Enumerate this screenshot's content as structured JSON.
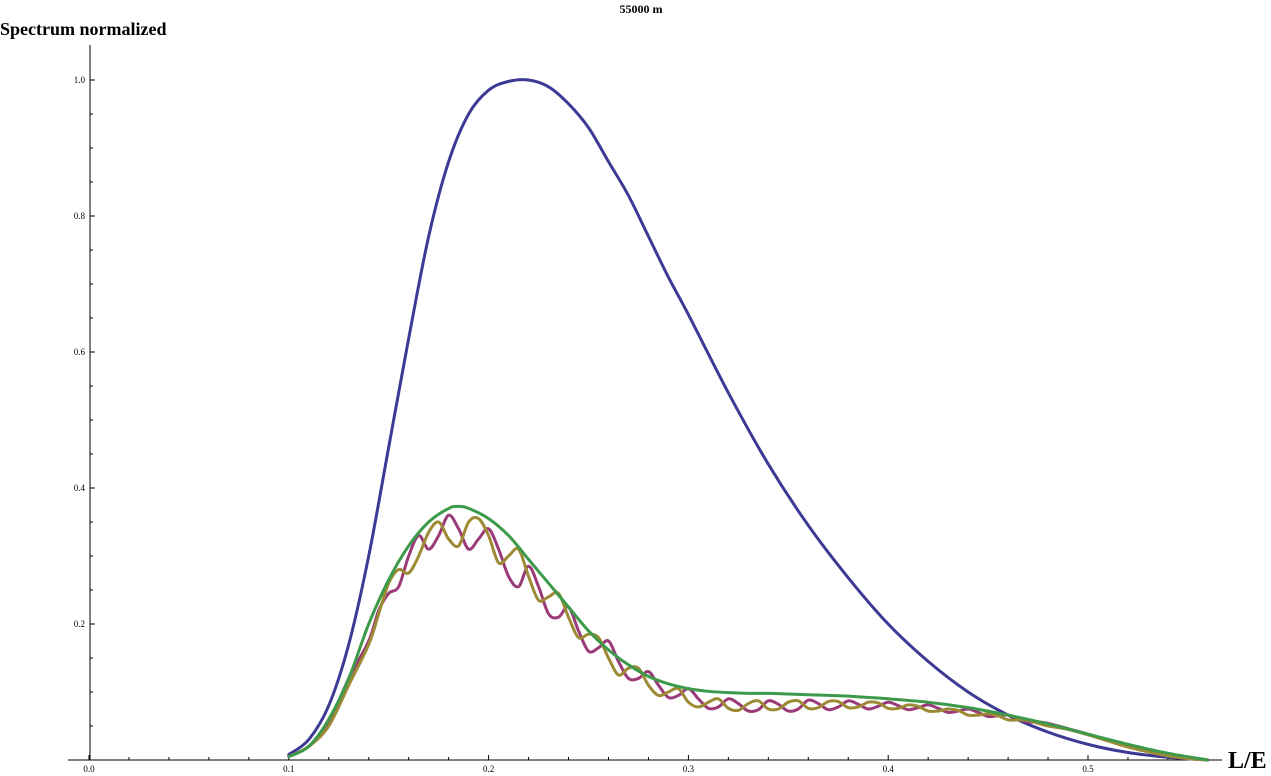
{
  "chart_data": {
    "type": "line",
    "title": "55000 m",
    "xlabel": "L/E",
    "ylabel": "Spectrum normalized",
    "xlim": [
      0.0,
      0.56
    ],
    "ylim": [
      0.0,
      1.0
    ],
    "grid": false,
    "legend": "none",
    "xticks": [
      {
        "value": 0.0,
        "label": "0.0"
      },
      {
        "value": 0.1,
        "label": "0.1"
      },
      {
        "value": 0.2,
        "label": "0.2"
      },
      {
        "value": 0.3,
        "label": "0.3"
      },
      {
        "value": 0.4,
        "label": "0.4"
      },
      {
        "value": 0.5,
        "label": "0.5"
      }
    ],
    "yticks": [
      {
        "value": 0.2,
        "label": "0.2"
      },
      {
        "value": 0.4,
        "label": "0.4"
      },
      {
        "value": 0.6,
        "label": "0.6"
      },
      {
        "value": 0.8,
        "label": "0.8"
      },
      {
        "value": 1.0,
        "label": "1.0"
      }
    ],
    "series": [
      {
        "color": "#3d3a95",
        "x": [
          0.1,
          0.11,
          0.12,
          0.13,
          0.14,
          0.15,
          0.16,
          0.17,
          0.18,
          0.19,
          0.2,
          0.21,
          0.22,
          0.23,
          0.24,
          0.25,
          0.26,
          0.27,
          0.28,
          0.29,
          0.3,
          0.32,
          0.34,
          0.36,
          0.38,
          0.4,
          0.42,
          0.44,
          0.46,
          0.48,
          0.5,
          0.52,
          0.54,
          0.56
        ],
        "y": [
          0.008,
          0.03,
          0.08,
          0.17,
          0.3,
          0.46,
          0.62,
          0.77,
          0.88,
          0.95,
          0.985,
          0.998,
          1.0,
          0.99,
          0.965,
          0.93,
          0.88,
          0.83,
          0.77,
          0.71,
          0.655,
          0.54,
          0.435,
          0.345,
          0.268,
          0.2,
          0.145,
          0.1,
          0.066,
          0.041,
          0.023,
          0.011,
          0.004,
          0.0
        ]
      },
      {
        "color": "#9b3a78",
        "x": [
          0.1,
          0.11,
          0.12,
          0.13,
          0.14,
          0.145,
          0.15,
          0.155,
          0.16,
          0.165,
          0.17,
          0.175,
          0.18,
          0.185,
          0.19,
          0.195,
          0.2,
          0.205,
          0.21,
          0.215,
          0.22,
          0.225,
          0.23,
          0.235,
          0.24,
          0.245,
          0.25,
          0.255,
          0.26,
          0.265,
          0.27,
          0.275,
          0.28,
          0.285,
          0.29,
          0.295,
          0.3,
          0.305,
          0.31,
          0.315,
          0.32,
          0.325,
          0.33,
          0.335,
          0.34,
          0.345,
          0.35,
          0.355,
          0.36,
          0.365,
          0.37,
          0.375,
          0.38,
          0.385,
          0.39,
          0.395,
          0.4,
          0.405,
          0.41,
          0.415,
          0.42,
          0.425,
          0.43,
          0.435,
          0.44,
          0.445,
          0.45,
          0.455,
          0.46,
          0.465,
          0.47,
          0.475,
          0.48,
          0.49,
          0.5,
          0.51,
          0.52,
          0.53,
          0.54,
          0.55,
          0.56
        ],
        "y": [
          0.005,
          0.02,
          0.055,
          0.12,
          0.175,
          0.22,
          0.245,
          0.255,
          0.3,
          0.33,
          0.31,
          0.33,
          0.36,
          0.34,
          0.31,
          0.325,
          0.34,
          0.31,
          0.27,
          0.255,
          0.285,
          0.255,
          0.215,
          0.21,
          0.225,
          0.19,
          0.16,
          0.165,
          0.175,
          0.145,
          0.12,
          0.12,
          0.13,
          0.11,
          0.092,
          0.095,
          0.105,
          0.09,
          0.076,
          0.078,
          0.09,
          0.083,
          0.072,
          0.074,
          0.087,
          0.082,
          0.072,
          0.075,
          0.088,
          0.083,
          0.074,
          0.078,
          0.087,
          0.082,
          0.075,
          0.079,
          0.085,
          0.08,
          0.074,
          0.077,
          0.081,
          0.076,
          0.07,
          0.072,
          0.075,
          0.07,
          0.064,
          0.065,
          0.066,
          0.061,
          0.056,
          0.056,
          0.054,
          0.046,
          0.038,
          0.029,
          0.02,
          0.013,
          0.007,
          0.003,
          0.0
        ]
      },
      {
        "color": "#9c8a35",
        "x": [
          0.1,
          0.11,
          0.12,
          0.13,
          0.14,
          0.145,
          0.15,
          0.155,
          0.16,
          0.165,
          0.17,
          0.175,
          0.18,
          0.185,
          0.19,
          0.195,
          0.2,
          0.205,
          0.21,
          0.215,
          0.22,
          0.225,
          0.23,
          0.235,
          0.24,
          0.245,
          0.25,
          0.255,
          0.26,
          0.265,
          0.27,
          0.275,
          0.28,
          0.285,
          0.29,
          0.295,
          0.3,
          0.305,
          0.31,
          0.315,
          0.32,
          0.325,
          0.33,
          0.335,
          0.34,
          0.345,
          0.35,
          0.355,
          0.36,
          0.365,
          0.37,
          0.375,
          0.38,
          0.385,
          0.39,
          0.395,
          0.4,
          0.405,
          0.41,
          0.415,
          0.42,
          0.425,
          0.43,
          0.435,
          0.44,
          0.445,
          0.45,
          0.455,
          0.46,
          0.465,
          0.47,
          0.475,
          0.48,
          0.49,
          0.5,
          0.51,
          0.52,
          0.53,
          0.54,
          0.55,
          0.56
        ],
        "y": [
          0.005,
          0.02,
          0.05,
          0.11,
          0.17,
          0.215,
          0.26,
          0.28,
          0.275,
          0.3,
          0.335,
          0.35,
          0.325,
          0.315,
          0.35,
          0.355,
          0.33,
          0.29,
          0.3,
          0.31,
          0.27,
          0.235,
          0.24,
          0.245,
          0.21,
          0.18,
          0.185,
          0.18,
          0.15,
          0.125,
          0.135,
          0.135,
          0.11,
          0.095,
          0.1,
          0.105,
          0.085,
          0.078,
          0.085,
          0.09,
          0.076,
          0.073,
          0.083,
          0.087,
          0.075,
          0.075,
          0.085,
          0.087,
          0.076,
          0.077,
          0.086,
          0.086,
          0.077,
          0.078,
          0.085,
          0.084,
          0.076,
          0.076,
          0.081,
          0.079,
          0.072,
          0.072,
          0.075,
          0.073,
          0.066,
          0.066,
          0.068,
          0.065,
          0.059,
          0.059,
          0.058,
          0.054,
          0.05,
          0.045,
          0.037,
          0.028,
          0.019,
          0.012,
          0.006,
          0.002,
          0.0
        ]
      },
      {
        "color": "#3d9a4a",
        "x": [
          0.1,
          0.11,
          0.12,
          0.13,
          0.14,
          0.15,
          0.16,
          0.17,
          0.18,
          0.185,
          0.19,
          0.2,
          0.21,
          0.22,
          0.23,
          0.24,
          0.25,
          0.26,
          0.27,
          0.28,
          0.29,
          0.3,
          0.31,
          0.32,
          0.33,
          0.34,
          0.35,
          0.36,
          0.37,
          0.38,
          0.39,
          0.4,
          0.42,
          0.44,
          0.46,
          0.48,
          0.5,
          0.52,
          0.54,
          0.56
        ],
        "y": [
          0.005,
          0.02,
          0.06,
          0.12,
          0.2,
          0.265,
          0.315,
          0.35,
          0.37,
          0.373,
          0.37,
          0.355,
          0.33,
          0.295,
          0.26,
          0.225,
          0.19,
          0.162,
          0.14,
          0.123,
          0.112,
          0.105,
          0.101,
          0.099,
          0.098,
          0.098,
          0.097,
          0.096,
          0.095,
          0.094,
          0.092,
          0.09,
          0.085,
          0.077,
          0.066,
          0.053,
          0.038,
          0.023,
          0.01,
          0.0
        ]
      }
    ]
  }
}
